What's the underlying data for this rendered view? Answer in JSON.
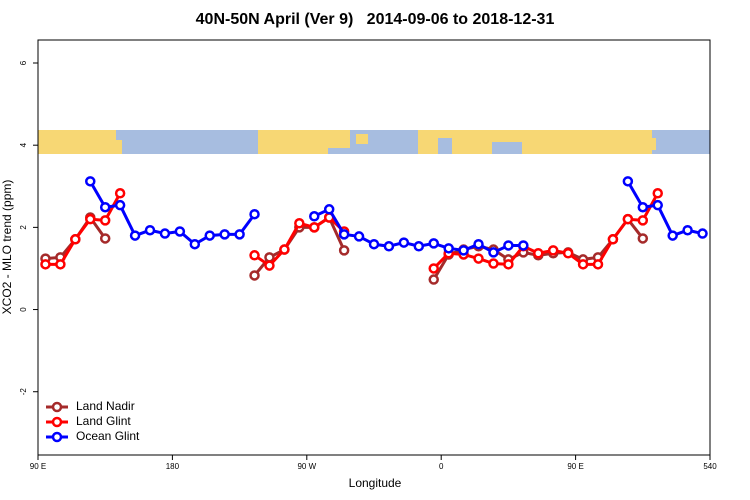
{
  "chart_data": {
    "type": "line",
    "title": "40N-50N April (Ver 9)   2014-09-06 to 2018-12-31",
    "x_label": "Longitude",
    "y_label": "XCO2 - MLO trend (ppm)",
    "xlim": [
      90,
      540
    ],
    "ylim": [
      -3.54,
      6.56
    ],
    "xticks": [
      {
        "value": 90,
        "label": "90 E"
      },
      180,
      {
        "value": 270,
        "label": "90 W"
      },
      {
        "value": 360,
        "label": "0"
      },
      {
        "value": 450,
        "label": "90 E"
      },
      540
    ],
    "yticks": [
      -2,
      0,
      2,
      4,
      6
    ],
    "legend": "bottom-left",
    "series": [
      {
        "name": "Land Nadir",
        "color": "#a52a2a",
        "x": [
          95,
          105,
          115,
          125,
          135,
          null,
          235,
          245,
          255,
          265,
          275,
          285,
          295,
          null,
          355,
          365,
          375,
          385,
          395,
          405,
          415,
          425,
          435,
          445,
          455,
          465,
          475,
          485,
          495
        ],
        "values": [
          1.24,
          1.27,
          1.71,
          2.24,
          1.73,
          null,
          0.83,
          1.27,
          1.46,
          2.0,
          2.0,
          2.24,
          1.44,
          null,
          0.73,
          1.34,
          1.46,
          1.54,
          1.46,
          1.22,
          1.39,
          1.32,
          1.37,
          1.39,
          1.22,
          1.27,
          1.71,
          2.2,
          1.73
        ]
      },
      {
        "name": "Land Glint",
        "color": "#ff0000",
        "x": [
          95,
          105,
          115,
          125,
          135,
          145,
          null,
          235,
          245,
          255,
          265,
          275,
          285,
          295,
          null,
          355,
          365,
          375,
          385,
          395,
          405,
          415,
          425,
          435,
          445,
          455,
          465,
          475,
          485,
          495,
          505
        ],
        "values": [
          1.1,
          1.1,
          1.71,
          2.2,
          2.17,
          2.83,
          null,
          1.32,
          1.07,
          1.46,
          2.1,
          2.0,
          2.24,
          1.9,
          null,
          1.0,
          1.37,
          1.34,
          1.24,
          1.12,
          1.1,
          1.54,
          1.37,
          1.44,
          1.37,
          1.1,
          1.1,
          1.71,
          2.2,
          2.17,
          2.83
        ]
      },
      {
        "name": "Ocean Glint",
        "color": "#0000ff",
        "x": [
          125,
          135,
          145,
          155,
          165,
          175,
          185,
          195,
          205,
          215,
          225,
          235,
          null,
          275,
          285,
          295,
          305,
          315,
          325,
          335,
          345,
          355,
          365,
          375,
          385,
          395,
          405,
          415,
          null,
          485,
          495,
          505,
          515,
          525,
          535
        ],
        "values": [
          3.12,
          2.49,
          2.54,
          1.8,
          1.93,
          1.85,
          1.9,
          1.59,
          1.8,
          1.83,
          1.83,
          2.32,
          null,
          2.27,
          2.44,
          1.83,
          1.78,
          1.59,
          1.54,
          1.63,
          1.54,
          1.61,
          1.49,
          1.44,
          1.59,
          1.39,
          1.56,
          1.56,
          null,
          3.12,
          2.49,
          2.54,
          1.8,
          1.93,
          1.85
        ]
      }
    ]
  }
}
